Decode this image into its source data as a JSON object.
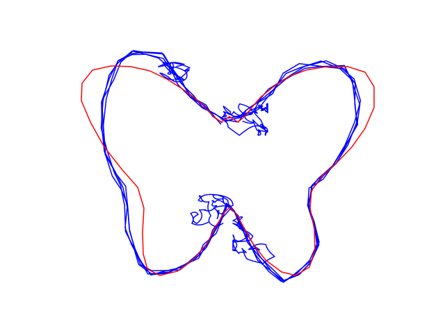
{
  "figure": {
    "background": "#ffffff",
    "axes_visible": false
  },
  "curves": [
    {
      "name": "reference-curve",
      "color": "#ff0000",
      "description_visible": false
    },
    {
      "name": "traced-curves",
      "color": "#0000ff",
      "description_visible": false
    }
  ]
}
